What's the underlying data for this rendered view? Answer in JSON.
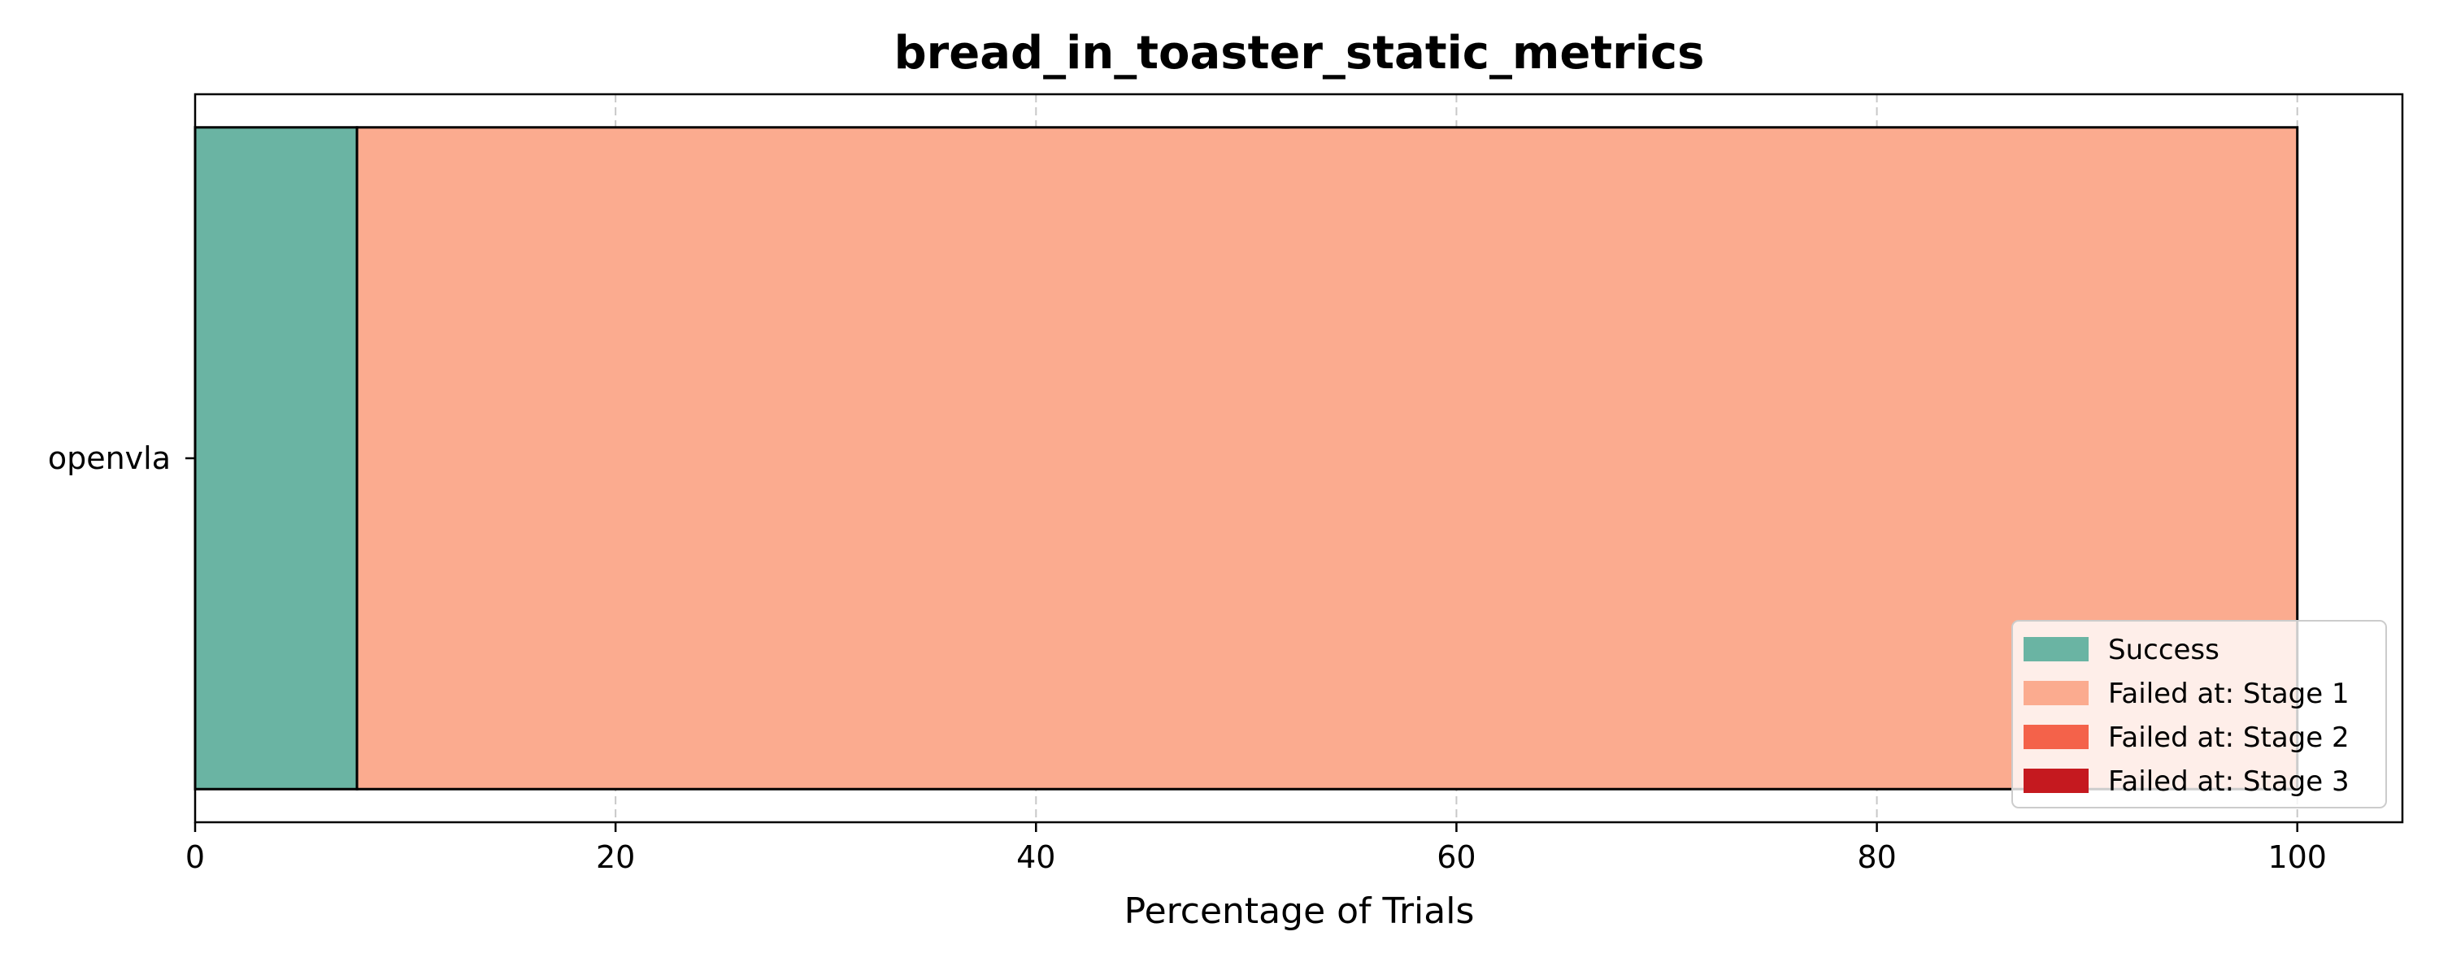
{
  "chart_data": {
    "type": "bar",
    "orientation": "horizontal",
    "stacked": true,
    "title": "bread_in_toaster_static_metrics",
    "xlabel": "Percentage of Trials",
    "ylabel": "",
    "xlim": [
      0,
      105
    ],
    "x_ticks": [
      0,
      20,
      40,
      60,
      80,
      100
    ],
    "grid": "x-dashed",
    "legend_position": "lower-right",
    "categories": [
      "openvla"
    ],
    "series": [
      {
        "name": "Success",
        "values": [
          7.7
        ],
        "color": "#6ab4a3"
      },
      {
        "name": "Failed at: Stage 1",
        "values": [
          92.3
        ],
        "color": "#fbab8f"
      },
      {
        "name": "Failed at: Stage 2",
        "values": [
          0
        ],
        "color": "#f4624a"
      },
      {
        "name": "Failed at: Stage 3",
        "values": [
          0
        ],
        "color": "#c5191f"
      }
    ]
  }
}
